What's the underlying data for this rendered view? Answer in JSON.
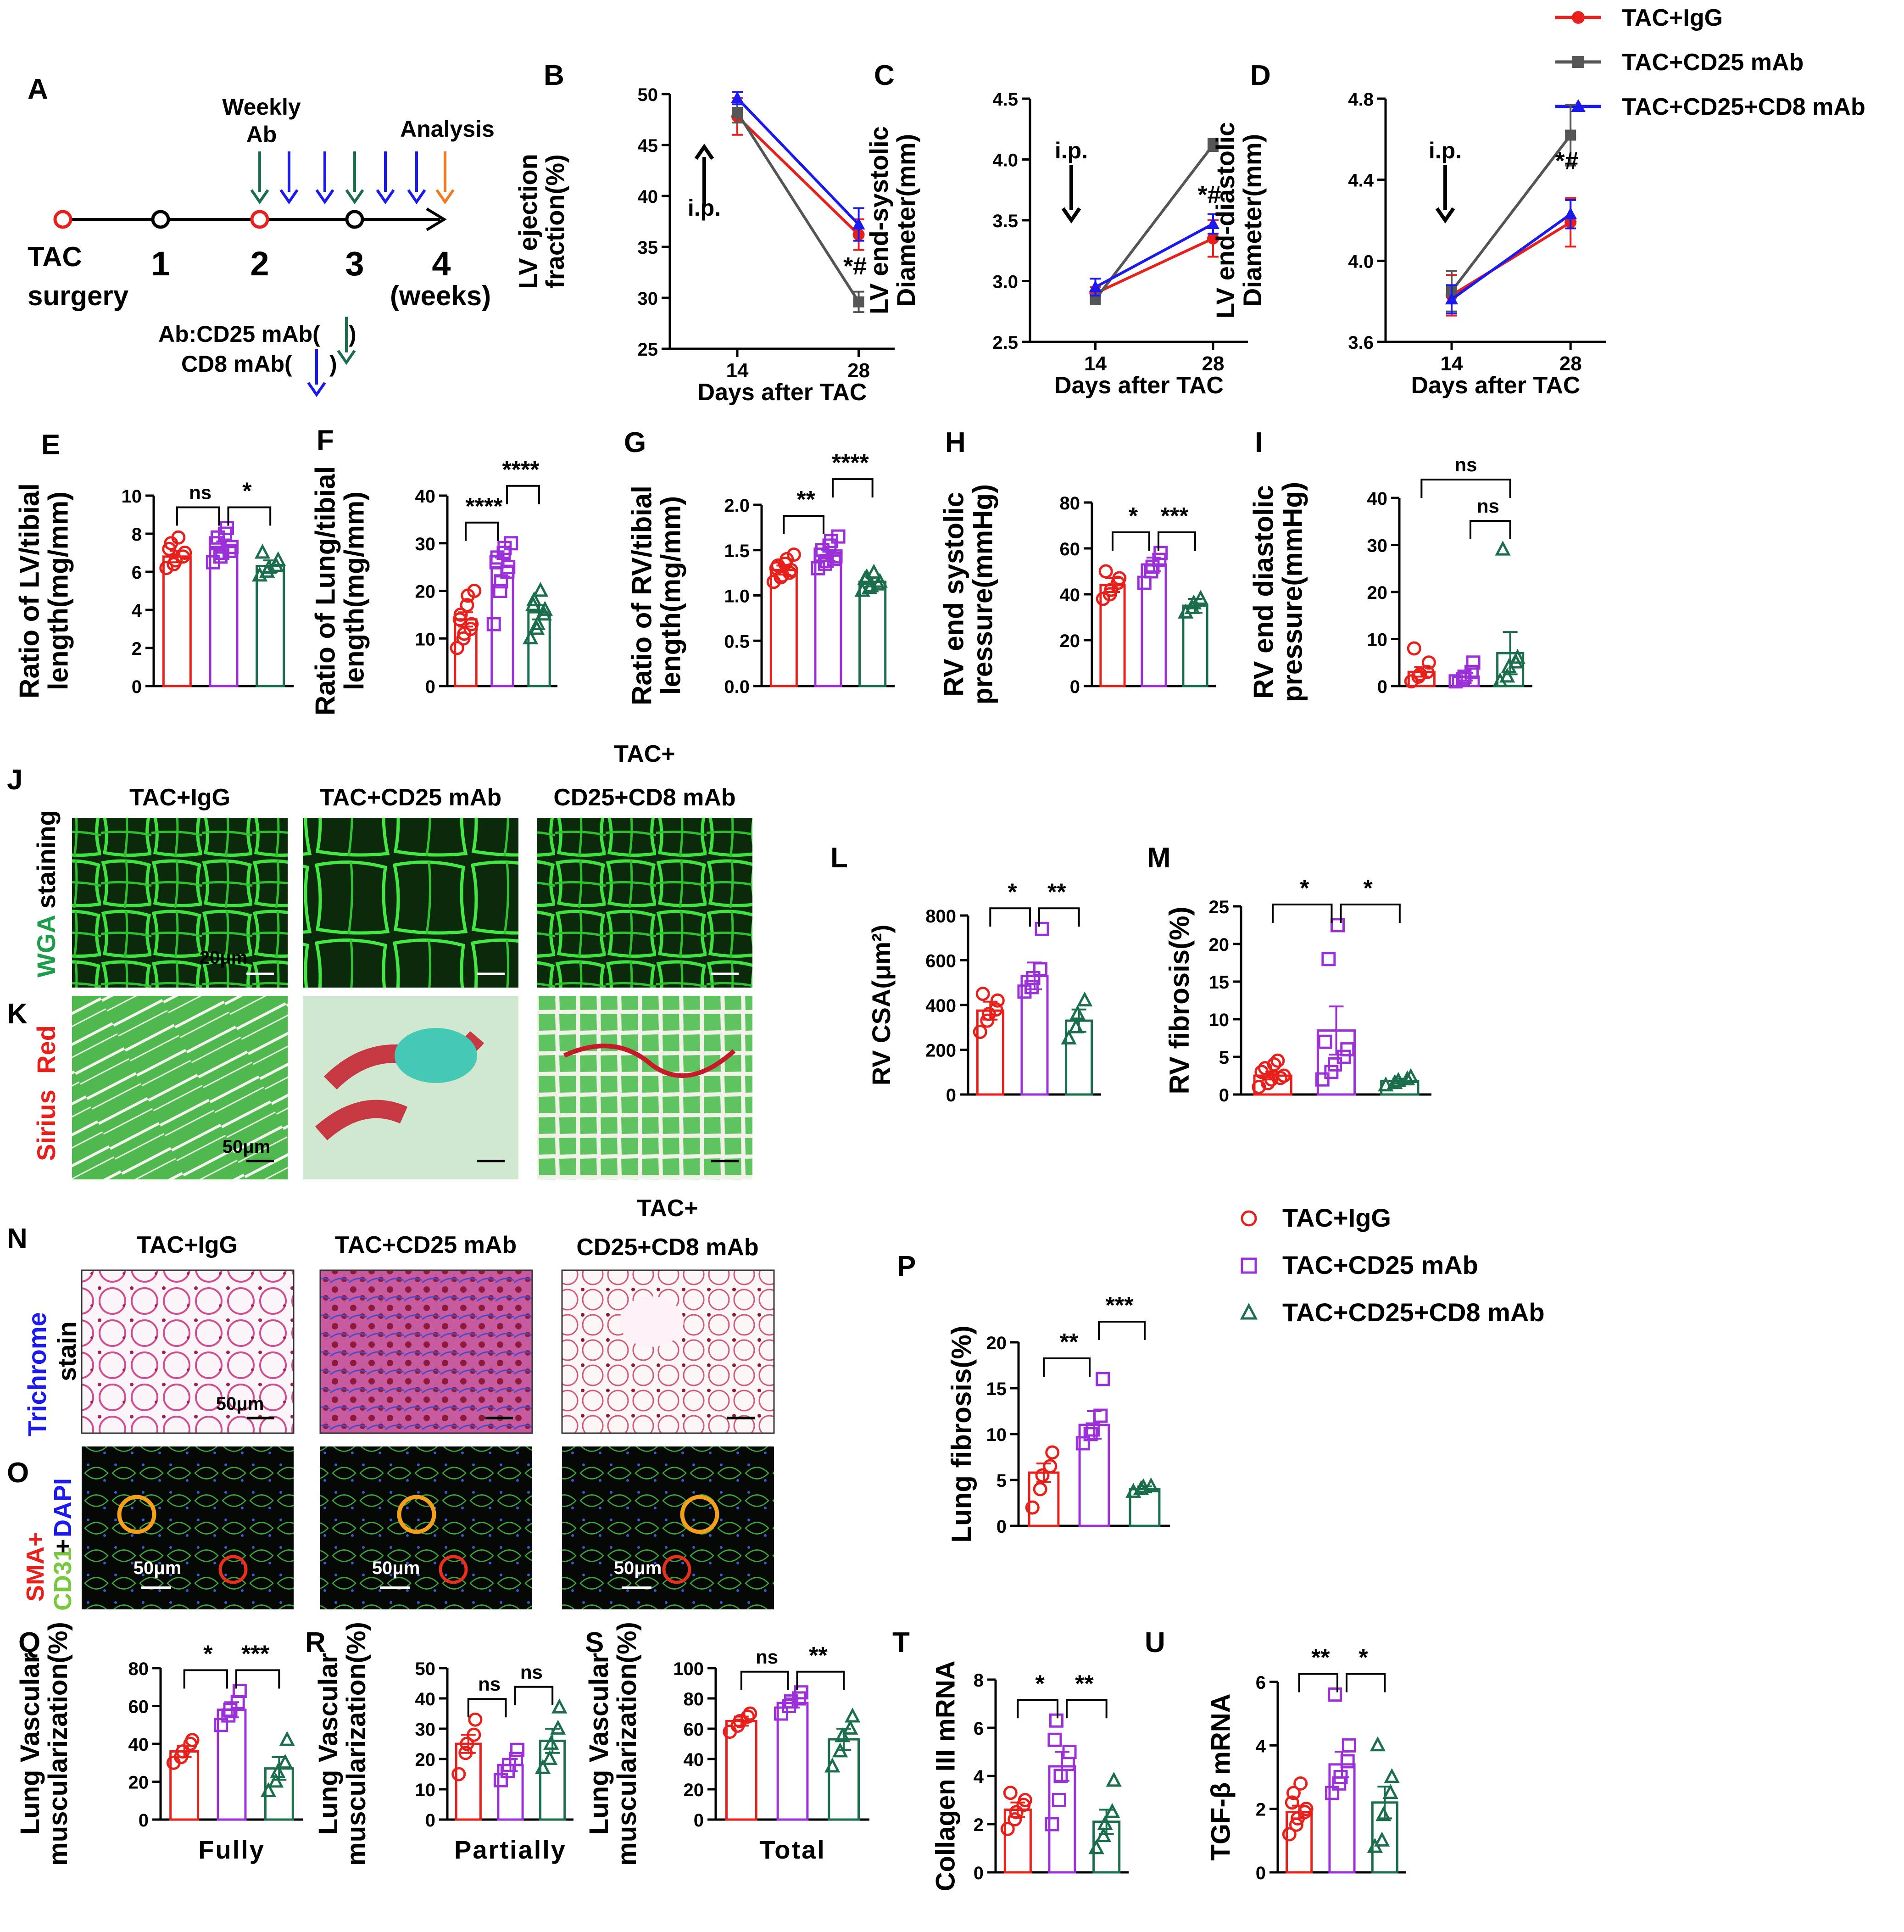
{
  "colors": {
    "igg": "#e8201c",
    "cd25": "#9b30d8",
    "cd8": "#1a6e4c",
    "gray": "#555555",
    "blue": "#1a1aee"
  },
  "legend_top": {
    "items": [
      "TAC+IgG",
      "TAC+CD25 mAb",
      "TAC+CD25+CD8 mAb"
    ]
  },
  "legend_mid": {
    "items": [
      "TAC+IgG",
      "TAC+CD25 mAb",
      "TAC+CD25+CD8 mAb"
    ]
  },
  "panelA": {
    "letter": "A",
    "weekly_ab_1": "Weekly",
    "weekly_ab_2": "Ab",
    "analysis": "Analysis",
    "tac_1": "TAC",
    "tac_2": "surgery",
    "weeks": [
      "1",
      "2",
      "3",
      "4"
    ],
    "weeks_unit": "(weeks)",
    "ab_line_1": "Ab:CD25 mAb(",
    "ab_line_close": ")",
    "ab_line_2": "CD8 mAb(",
    "ab_line_2_close": ")"
  },
  "chart_data": [
    {
      "id": "B",
      "letter": "B",
      "type": "line",
      "x": [
        14,
        28
      ],
      "xlabel": "Days after TAC",
      "ylabel": [
        "LV ejection",
        "fraction(%)"
      ],
      "ylim": [
        25,
        50
      ],
      "yticks": [
        25,
        30,
        35,
        40,
        45,
        50
      ],
      "annotation": "i.p.",
      "sig": "*#",
      "series": [
        {
          "name": "TAC+IgG",
          "values": [
            47.8,
            36.2
          ],
          "err": [
            1.8,
            1.5
          ]
        },
        {
          "name": "TAC+CD25 mAb",
          "values": [
            48.2,
            29.6
          ],
          "err": [
            1.0,
            1.0
          ]
        },
        {
          "name": "TAC+CD25+CD8 mAb",
          "values": [
            49.6,
            37.2
          ],
          "err": [
            0.6,
            1.6
          ]
        }
      ]
    },
    {
      "id": "C",
      "letter": "C",
      "type": "line",
      "x": [
        14,
        28
      ],
      "xlabel": "Days after TAC",
      "ylabel": [
        "LV end-systolic",
        "Diameter(mm)"
      ],
      "ylim": [
        2.5,
        4.5
      ],
      "yticks": [
        2.5,
        3.0,
        3.5,
        4.0,
        4.5
      ],
      "annotation": "i.p.",
      "sig": "*#",
      "series": [
        {
          "name": "TAC+IgG",
          "values": [
            2.9,
            3.35
          ],
          "err": [
            0.05,
            0.15
          ]
        },
        {
          "name": "TAC+CD25 mAb",
          "values": [
            2.85,
            4.12
          ],
          "err": [
            0.04,
            0.05
          ]
        },
        {
          "name": "TAC+CD25+CD8 mAb",
          "values": [
            2.95,
            3.47
          ],
          "err": [
            0.07,
            0.08
          ]
        }
      ]
    },
    {
      "id": "D",
      "letter": "D",
      "type": "line",
      "x": [
        14,
        28
      ],
      "xlabel": "Days after TAC",
      "ylabel": [
        "LV end-diastolic",
        "Diameter(mm)"
      ],
      "ylim": [
        3.6,
        4.8
      ],
      "yticks": [
        3.6,
        4.0,
        4.4,
        4.8
      ],
      "annotation": "i.p.",
      "sig": "*#",
      "series": [
        {
          "name": "TAC+IgG",
          "values": [
            3.83,
            4.19
          ],
          "err": [
            0.1,
            0.12
          ]
        },
        {
          "name": "TAC+CD25 mAb",
          "values": [
            3.85,
            4.62
          ],
          "err": [
            0.1,
            0.15
          ]
        },
        {
          "name": "TAC+CD25+CD8 mAb",
          "values": [
            3.81,
            4.23
          ],
          "err": [
            0.07,
            0.07
          ]
        }
      ]
    },
    {
      "id": "E",
      "letter": "E",
      "type": "bar",
      "ylabel": [
        "Ratio of LV/tibial",
        "length(mg/mm)"
      ],
      "ylim": [
        0,
        10
      ],
      "yticks": [
        0,
        2,
        4,
        6,
        8,
        10
      ],
      "values": [
        6.8,
        7.3,
        6.3
      ],
      "err": [
        0.3,
        0.3,
        0.3
      ],
      "points": [
        [
          6.2,
          6.4,
          6.6,
          6.8,
          7.0,
          7.2,
          7.5,
          7.8
        ],
        [
          6.5,
          6.8,
          7.0,
          7.1,
          7.3,
          7.5,
          7.8,
          8.0,
          8.3
        ],
        [
          5.8,
          6.0,
          6.2,
          6.3,
          6.6,
          7.0
        ]
      ],
      "sig": [
        {
          "a": 0,
          "b": 1,
          "label": "ns",
          "level": 0
        },
        {
          "a": 1,
          "b": 2,
          "label": "*",
          "level": 0
        }
      ]
    },
    {
      "id": "F",
      "letter": "F",
      "type": "bar",
      "ylabel": [
        "Ratio of Lung/tibial",
        "length(mg/mm)"
      ],
      "ylim": [
        0,
        40
      ],
      "yticks": [
        0,
        10,
        20,
        30,
        40
      ],
      "values": [
        14,
        25,
        15.5
      ],
      "err": [
        1.5,
        2.0,
        1.5
      ],
      "points": [
        [
          8,
          10,
          11,
          12,
          13,
          14,
          15,
          17,
          19,
          20
        ],
        [
          13,
          20,
          22,
          24,
          25,
          26,
          27,
          28,
          29,
          30
        ],
        [
          10,
          12,
          13,
          15,
          16,
          17,
          18,
          20
        ]
      ],
      "sig": [
        {
          "a": 0,
          "b": 1,
          "label": "****",
          "level": 0
        },
        {
          "a": 1,
          "b": 2,
          "label": "****",
          "level": 1
        }
      ]
    },
    {
      "id": "G",
      "letter": "G",
      "type": "bar",
      "ylabel": [
        "Ratio of RV/tibial",
        "length(mg/mm)"
      ],
      "ylim": [
        0,
        2.0
      ],
      "yticks": [
        0.0,
        0.5,
        1.0,
        1.5,
        2.0
      ],
      "values": [
        1.28,
        1.44,
        1.15
      ],
      "err": [
        0.05,
        0.06,
        0.05
      ],
      "points": [
        [
          1.15,
          1.2,
          1.22,
          1.25,
          1.28,
          1.3,
          1.33,
          1.35,
          1.4,
          1.45
        ],
        [
          1.3,
          1.35,
          1.38,
          1.4,
          1.43,
          1.45,
          1.5,
          1.55,
          1.6,
          1.65
        ],
        [
          1.05,
          1.08,
          1.1,
          1.12,
          1.15,
          1.18,
          1.2,
          1.25
        ]
      ],
      "sig": [
        {
          "a": 0,
          "b": 1,
          "label": "**",
          "level": 0
        },
        {
          "a": 1,
          "b": 2,
          "label": "****",
          "level": 1
        }
      ]
    },
    {
      "id": "H",
      "letter": "H",
      "type": "bar",
      "ylabel": [
        "RV end systolic",
        "pressure(mmHg)"
      ],
      "ylim": [
        0,
        80
      ],
      "yticks": [
        0,
        20,
        40,
        60,
        80
      ],
      "values": [
        44,
        53,
        35
      ],
      "err": [
        3,
        3,
        3
      ],
      "points": [
        [
          38,
          40,
          42,
          45,
          47,
          50
        ],
        [
          45,
          50,
          52,
          55,
          58
        ],
        [
          32,
          34,
          36,
          38
        ]
      ],
      "sig": [
        {
          "a": 0,
          "b": 1,
          "label": "*",
          "level": 0
        },
        {
          "a": 1,
          "b": 2,
          "label": "***",
          "level": 0
        }
      ]
    },
    {
      "id": "I",
      "letter": "I",
      "type": "bar",
      "ylabel": [
        "RV end diastolic",
        "pressure(mmHg)"
      ],
      "ylim": [
        0,
        40
      ],
      "yticks": [
        0,
        10,
        20,
        30,
        40
      ],
      "values": [
        3,
        2,
        7
      ],
      "err": [
        1,
        0.8,
        4.5
      ],
      "points": [
        [
          1,
          2,
          2.5,
          3,
          5,
          8
        ],
        [
          1,
          1.5,
          2,
          3,
          5
        ],
        [
          1,
          2,
          4,
          5,
          6,
          29
        ]
      ],
      "sig": [
        {
          "a": 0,
          "b": 2,
          "label": "ns",
          "level": 2
        },
        {
          "a": 1,
          "b": 2,
          "label": "ns",
          "level": 1
        }
      ]
    },
    {
      "id": "L",
      "letter": "L",
      "type": "bar",
      "ylabel_rich": "RV CSA(μm²)",
      "ylim": [
        0,
        800
      ],
      "yticks": [
        0,
        200,
        400,
        600,
        800
      ],
      "values": [
        375,
        530,
        330
      ],
      "err": [
        40,
        60,
        50
      ],
      "points": [
        [
          280,
          330,
          360,
          380,
          420,
          450
        ],
        [
          460,
          480,
          520,
          560,
          740
        ],
        [
          250,
          300,
          360,
          420
        ]
      ],
      "sig": [
        {
          "a": 0,
          "b": 1,
          "label": "*",
          "level": 0
        },
        {
          "a": 1,
          "b": 2,
          "label": "**",
          "level": 0
        }
      ]
    },
    {
      "id": "M",
      "letter": "M",
      "type": "bar",
      "ylabel": [
        "RV fibrosis(%)"
      ],
      "ylim": [
        0,
        25
      ],
      "yticks": [
        0,
        5,
        10,
        15,
        20,
        25
      ],
      "values": [
        2.5,
        8.5,
        1.8
      ],
      "err": [
        0.5,
        3.2,
        0.3
      ],
      "points": [
        [
          1,
          1.5,
          2,
          2.2,
          2.5,
          3,
          3.5,
          4,
          4.5
        ],
        [
          2,
          3,
          4,
          5,
          6,
          7,
          18,
          22.5
        ],
        [
          1.2,
          1.5,
          1.8,
          2.0,
          2.3
        ]
      ],
      "sig": [
        {
          "a": 0,
          "b": 1,
          "label": "*",
          "level": 0
        },
        {
          "a": 1,
          "b": 2,
          "label": "*",
          "level": 0
        }
      ]
    },
    {
      "id": "P",
      "letter": "P",
      "type": "bar",
      "ylabel": [
        "Lung fibrosis(%)"
      ],
      "ylim": [
        0,
        20
      ],
      "yticks": [
        0,
        5,
        10,
        15,
        20
      ],
      "values": [
        5.8,
        11,
        4
      ],
      "err": [
        1.0,
        1.5,
        0.3
      ],
      "points": [
        [
          2,
          4,
          5.5,
          6.5,
          8
        ],
        [
          9,
          10,
          10.5,
          12,
          16
        ],
        [
          3.7,
          4.0,
          4.2,
          4.3
        ]
      ],
      "sig": [
        {
          "a": 0,
          "b": 1,
          "label": "**",
          "level": 0
        },
        {
          "a": 1,
          "b": 2,
          "label": "***",
          "level": 1
        }
      ]
    },
    {
      "id": "Q",
      "letter": "Q",
      "type": "bar",
      "ylabel": [
        "Lung Vascular",
        "muscularization(%)"
      ],
      "xlabel": "Fully",
      "ylim": [
        0,
        80
      ],
      "yticks": [
        0,
        20,
        40,
        60,
        80
      ],
      "values": [
        36,
        58,
        27
      ],
      "err": [
        3,
        4,
        6
      ],
      "points": [
        [
          30,
          33,
          36,
          40,
          42
        ],
        [
          50,
          55,
          58,
          62,
          68
        ],
        [
          15,
          20,
          25,
          30,
          42
        ]
      ],
      "sig": [
        {
          "a": 0,
          "b": 1,
          "label": "*",
          "level": 0
        },
        {
          "a": 1,
          "b": 2,
          "label": "***",
          "level": 0
        }
      ]
    },
    {
      "id": "R",
      "letter": "R",
      "type": "bar",
      "ylabel": [
        "Lung Vascular",
        "muscularization(%)"
      ],
      "xlabel": "Partially",
      "ylim": [
        0,
        50
      ],
      "yticks": [
        0,
        10,
        20,
        30,
        40,
        50
      ],
      "values": [
        25,
        18,
        26
      ],
      "err": [
        3,
        2,
        4
      ],
      "points": [
        [
          15,
          22,
          25,
          28,
          33
        ],
        [
          13,
          16,
          18,
          20,
          23
        ],
        [
          17,
          20,
          25,
          30,
          37
        ]
      ],
      "sig": [
        {
          "a": 0,
          "b": 1,
          "label": "ns",
          "level": 0
        },
        {
          "a": 1,
          "b": 2,
          "label": "ns",
          "level": 0
        }
      ]
    },
    {
      "id": "S",
      "letter": "S",
      "type": "bar",
      "ylabel": [
        "Lung Vascular",
        "muscularization(%)"
      ],
      "xlabel": "Total",
      "ylim": [
        0,
        100
      ],
      "yticks": [
        0,
        20,
        40,
        60,
        80,
        100
      ],
      "values": [
        65,
        77,
        53
      ],
      "err": [
        3,
        3,
        7
      ],
      "points": [
        [
          58,
          62,
          65,
          68,
          70
        ],
        [
          70,
          75,
          78,
          80,
          84
        ],
        [
          35,
          45,
          55,
          60,
          68
        ]
      ],
      "sig": [
        {
          "a": 0,
          "b": 1,
          "label": "ns",
          "level": 0
        },
        {
          "a": 1,
          "b": 2,
          "label": "**",
          "level": 0
        }
      ]
    },
    {
      "id": "T",
      "letter": "T",
      "type": "bar",
      "ylabel": [
        "Collagen III mRNA"
      ],
      "ylim": [
        0,
        8
      ],
      "yticks": [
        0,
        2,
        4,
        6,
        8
      ],
      "values": [
        2.6,
        4.4,
        2.1
      ],
      "err": [
        0.3,
        0.6,
        0.5
      ],
      "points": [
        [
          1.8,
          2.2,
          2.5,
          2.8,
          3.0,
          3.3
        ],
        [
          2.0,
          3.0,
          4.0,
          4.5,
          5.0,
          5.5,
          6.3
        ],
        [
          1.0,
          1.5,
          2.0,
          2.5,
          3.8
        ]
      ],
      "sig": [
        {
          "a": 0,
          "b": 1,
          "label": "*",
          "level": 0
        },
        {
          "a": 1,
          "b": 2,
          "label": "**",
          "level": 0
        }
      ]
    },
    {
      "id": "U",
      "letter": "U",
      "type": "bar",
      "ylabel": [
        "TGF-β mRNA"
      ],
      "ylim": [
        0,
        6
      ],
      "yticks": [
        0,
        2,
        4,
        6
      ],
      "values": [
        1.9,
        3.4,
        2.2
      ],
      "err": [
        0.2,
        0.4,
        0.5
      ],
      "points": [
        [
          1.2,
          1.5,
          1.7,
          1.9,
          2.0,
          2.2,
          2.5,
          2.8
        ],
        [
          2.5,
          2.8,
          3.0,
          3.5,
          4.0,
          5.6
        ],
        [
          0.8,
          1.0,
          1.8,
          2.5,
          3.0,
          4.0
        ]
      ],
      "sig": [
        {
          "a": 0,
          "b": 1,
          "label": "**",
          "level": 0
        },
        {
          "a": 1,
          "b": 2,
          "label": "*",
          "level": 0
        }
      ]
    }
  ],
  "images": {
    "panelJ": {
      "letter": "J",
      "titles": [
        "TAC+IgG",
        "TAC+CD25 mAb",
        "TAC+"
      ],
      "title3b": "CD25+CD8 mAb",
      "side_wga": "WGA",
      "side_staining": "staining",
      "scale": "20μm"
    },
    "panelK": {
      "letter": "K",
      "side_sirius": "Sirius",
      "side_red": "Red",
      "scale": "50μm"
    },
    "panelN": {
      "letter": "N",
      "titles": [
        "TAC+IgG",
        "TAC+CD25 mAb",
        "TAC+"
      ],
      "title3b": "CD25+CD8 mAb",
      "side_trichrome": "Trichrome",
      "side_stain": "stain",
      "scale": "50μm"
    },
    "panelO": {
      "letter": "O",
      "side_sma": "SMA+",
      "side_cd31": "CD31",
      "side_plus": "+",
      "side_dapi": "DAPI",
      "scale": "50μm"
    }
  }
}
